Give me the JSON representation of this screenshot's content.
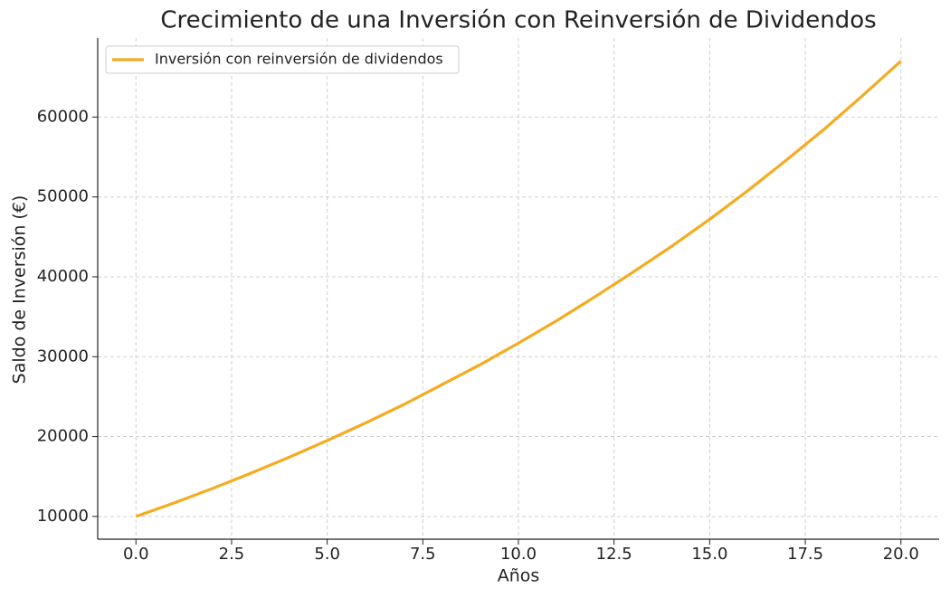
{
  "chart_data": {
    "type": "line",
    "title": "Crecimiento de una Inversión con Reinversión de Dividendos",
    "xlabel": "Años",
    "ylabel": "Saldo de Inversión (€)",
    "x": [
      0,
      1,
      2,
      3,
      4,
      5,
      6,
      7,
      8,
      9,
      10,
      11,
      12,
      13,
      14,
      15,
      16,
      17,
      18,
      19,
      20
    ],
    "series": [
      {
        "name": "Inversión con reinversión de dividendos",
        "color": "#f5ab1f",
        "values": [
          10000,
          11700,
          13500,
          15400,
          17400,
          19500,
          21700,
          24000,
          26500,
          29000,
          31700,
          34500,
          37500,
          40600,
          43800,
          47200,
          50800,
          54600,
          58500,
          62700,
          67000
        ]
      }
    ],
    "xlim": [
      -1,
      21
    ],
    "ylim": [
      7150,
      69900
    ],
    "xticks": [
      {
        "value": 0,
        "label": "0.0"
      },
      {
        "value": 2.5,
        "label": "2.5"
      },
      {
        "value": 5,
        "label": "5.0"
      },
      {
        "value": 7.5,
        "label": "7.5"
      },
      {
        "value": 10,
        "label": "10.0"
      },
      {
        "value": 12.5,
        "label": "12.5"
      },
      {
        "value": 15,
        "label": "15.0"
      },
      {
        "value": 17.5,
        "label": "17.5"
      },
      {
        "value": 20,
        "label": "20.0"
      }
    ],
    "yticks": [
      10000,
      20000,
      30000,
      40000,
      50000,
      60000
    ],
    "grid": true,
    "legend": "upper-left"
  }
}
